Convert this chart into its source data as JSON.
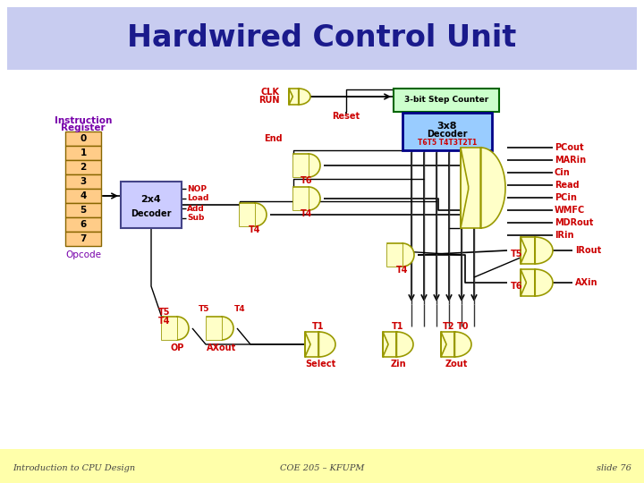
{
  "title": "Hardwired Control Unit",
  "title_color": "#1a1a8c",
  "title_bg": "#c8ccf0",
  "footer_bg": "#ffffaa",
  "footer_left": "Introduction to CPU Design",
  "footer_center": "COE 205 – KFUPM",
  "footer_right": "slide 76",
  "footer_color": "#444444",
  "bg_color": "#ffffff",
  "gate_fill": "#ffffc8",
  "gate_edge": "#999900",
  "box_fill_green": "#ccffcc",
  "box_fill_blue": "#99ccff",
  "box_fill_orange": "#ffcc88",
  "box_fill_gray": "#ccccff",
  "red_label": "#cc0000",
  "purple_label": "#7700aa",
  "black": "#000000",
  "wire_color": "#000000"
}
